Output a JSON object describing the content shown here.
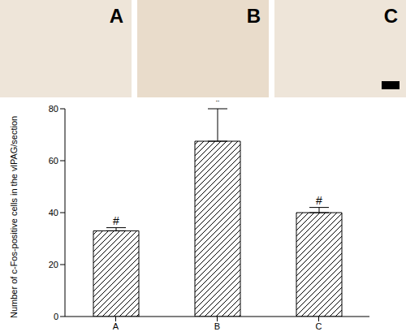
{
  "panels": {
    "labels": [
      "A",
      "B",
      "C"
    ]
  },
  "chart_data": {
    "type": "bar",
    "y_label": "Number of c-Fos-positive cells in the vlPAG/section",
    "categories": [
      "A",
      "B",
      "C"
    ],
    "values": [
      33,
      67.5,
      40
    ],
    "errors": [
      1.2,
      12.5,
      2
    ],
    "annotations": [
      "#",
      "*",
      "#"
    ],
    "color": "#000000",
    "ylim": [
      0,
      80
    ],
    "yticks": [
      0,
      20,
      40,
      60,
      80
    ],
    "grid": false
  }
}
